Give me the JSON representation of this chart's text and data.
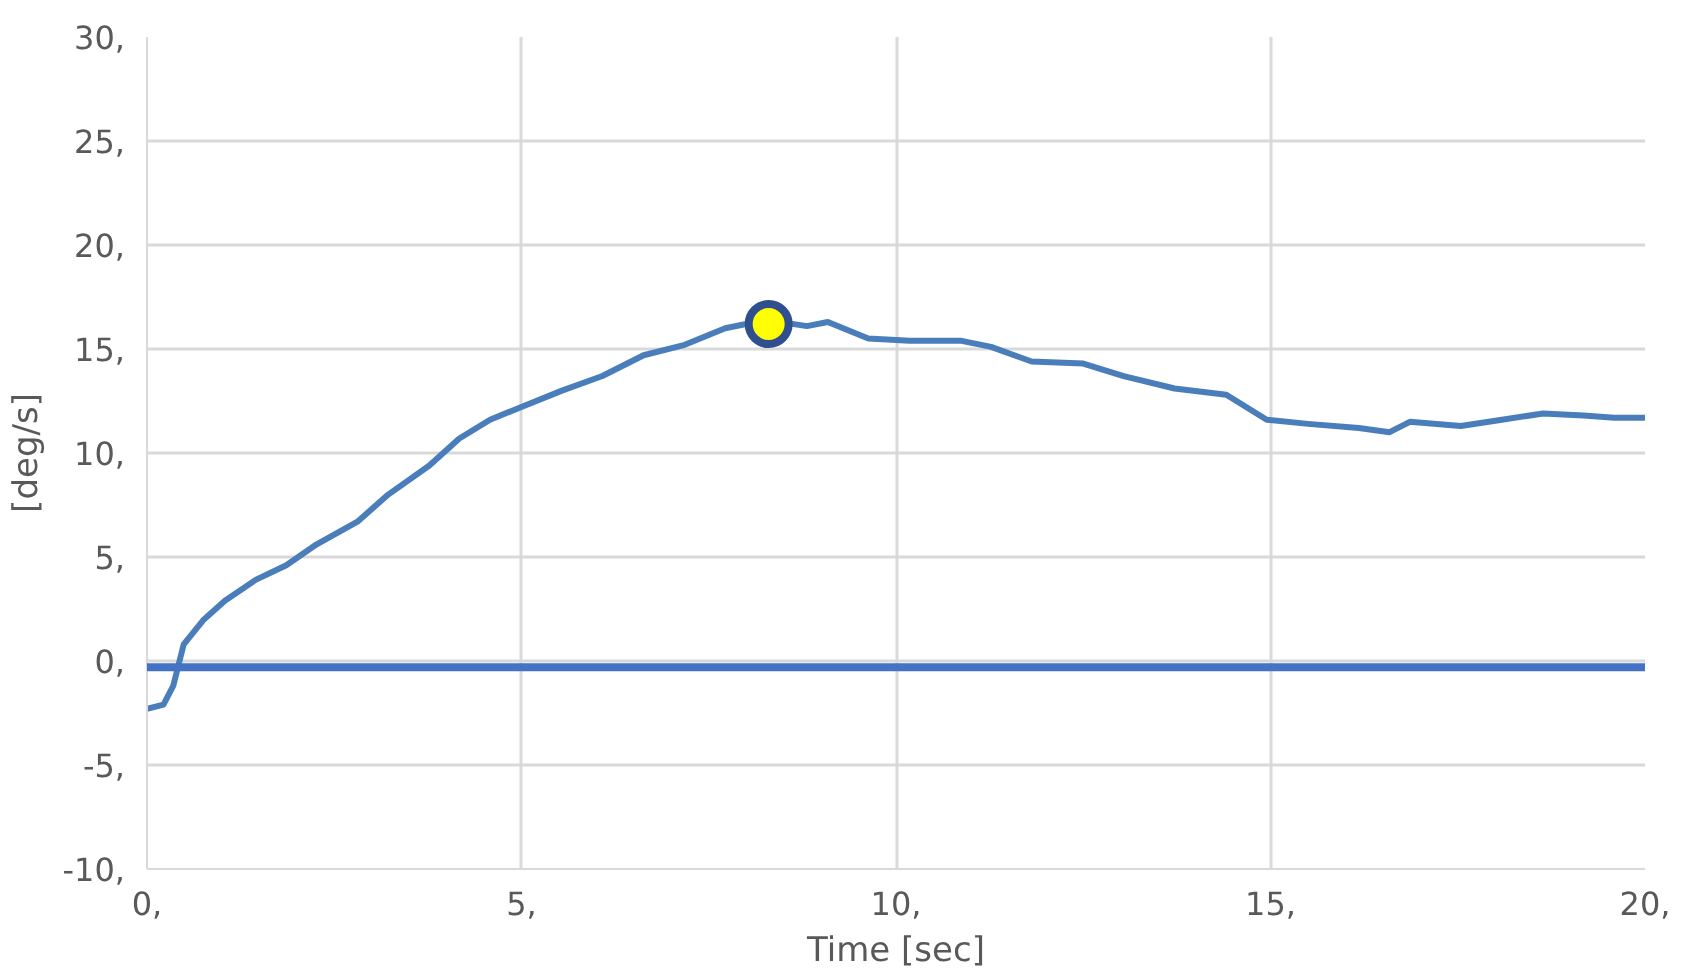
{
  "chart_data": {
    "type": "line",
    "xlabel": "Time [sec]",
    "ylabel": "[deg/s]",
    "xlim": [
      0,
      20
    ],
    "ylim": [
      -10,
      30
    ],
    "xticks": [
      {
        "value": 0,
        "label": "0,"
      },
      {
        "value": 5,
        "label": "5,"
      },
      {
        "value": 10,
        "label": "10,"
      },
      {
        "value": 15,
        "label": "15,"
      },
      {
        "value": 20,
        "label": "20,"
      }
    ],
    "yticks": [
      {
        "value": -10,
        "label": "-10,"
      },
      {
        "value": -5,
        "label": "-5,"
      },
      {
        "value": 0,
        "label": "0,"
      },
      {
        "value": 5,
        "label": "5,"
      },
      {
        "value": 10,
        "label": "10,"
      },
      {
        "value": 15,
        "label": "15,"
      },
      {
        "value": 20,
        "label": "20,"
      },
      {
        "value": 25,
        "label": "25,"
      },
      {
        "value": 30,
        "label": "30,"
      }
    ],
    "grid": true,
    "marker": "none",
    "line_style": "solid",
    "ref_lines": [
      {
        "axis": "y",
        "value": -0.3,
        "color": "#4472c4"
      }
    ],
    "series": [
      {
        "color": "#4a7ebb",
        "x": [
          0,
          0.22,
          0.35,
          0.49,
          0.76,
          1.04,
          1.45,
          1.86,
          2.26,
          2.81,
          3.22,
          3.77,
          4.17,
          4.58,
          4.99,
          5.54,
          6.08,
          6.63,
          7.18,
          7.72,
          8.27,
          8.81,
          9.09,
          9.63,
          10.18,
          10.86,
          11.27,
          11.81,
          12.5,
          13.04,
          13.72,
          14.41,
          14.95,
          15.5,
          16.18,
          16.59,
          16.86,
          17.54,
          18.09,
          18.64,
          19.18,
          19.59,
          20
        ],
        "values": [
          -2.3,
          -2.1,
          -1.2,
          0.8,
          2.0,
          2.9,
          3.9,
          4.6,
          5.6,
          6.7,
          8.0,
          9.4,
          10.7,
          11.6,
          12.2,
          13.0,
          13.7,
          14.7,
          15.2,
          16.0,
          16.4,
          16.1,
          16.3,
          15.5,
          15.4,
          15.4,
          15.1,
          14.4,
          14.3,
          13.7,
          13.1,
          12.8,
          11.6,
          11.4,
          11.2,
          11.0,
          11.5,
          11.3,
          11.6,
          11.9,
          11.8,
          11.7,
          11.7
        ]
      },
      {
        "type": "scatter",
        "marker": "circle",
        "color": "#ffff00",
        "x": [
          8.3
        ],
        "values": [
          16.2
        ]
      }
    ]
  }
}
